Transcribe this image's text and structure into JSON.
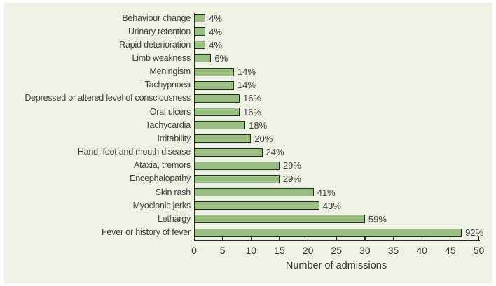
{
  "chart_data": {
    "type": "bar",
    "orientation": "horizontal",
    "title": "",
    "xlabel": "Number of admissions",
    "ylabel": "",
    "xlim": [
      0,
      50
    ],
    "xticks": [
      0,
      5,
      10,
      15,
      20,
      25,
      30,
      35,
      40,
      45,
      50
    ],
    "grid": false,
    "legend": null,
    "categories": [
      "Behaviour change",
      "Urinary retention",
      "Rapid deterioration",
      "Limb weakness",
      "Meningism",
      "Tachypnoea",
      "Depressed or altered level of consciousness",
      "Oral ulcers",
      "Tachycardia",
      "Irritability",
      "Hand, foot and mouth disease",
      "Ataxia, tremors",
      "Encephalopathy",
      "Skin rash",
      "Myoclonic jerks",
      "Lethargy",
      "Fever or history of fever"
    ],
    "values": [
      2,
      2,
      2,
      3,
      7,
      7,
      8,
      8,
      9,
      10,
      12,
      15,
      15,
      21,
      22,
      30,
      47
    ],
    "bar_labels": [
      "4%",
      "4%",
      "4%",
      "6%",
      "14%",
      "14%",
      "16%",
      "16%",
      "18%",
      "20%",
      "24%",
      "29%",
      "29%",
      "41%",
      "43%",
      "59%",
      "92%"
    ],
    "colors": {
      "bar_fill": "#9ac083",
      "bar_border": "#24281f",
      "panel_background": "#edf2e5",
      "page_background": "#ffffff",
      "text": "#3c3c3c",
      "axis": "#24281f"
    }
  }
}
